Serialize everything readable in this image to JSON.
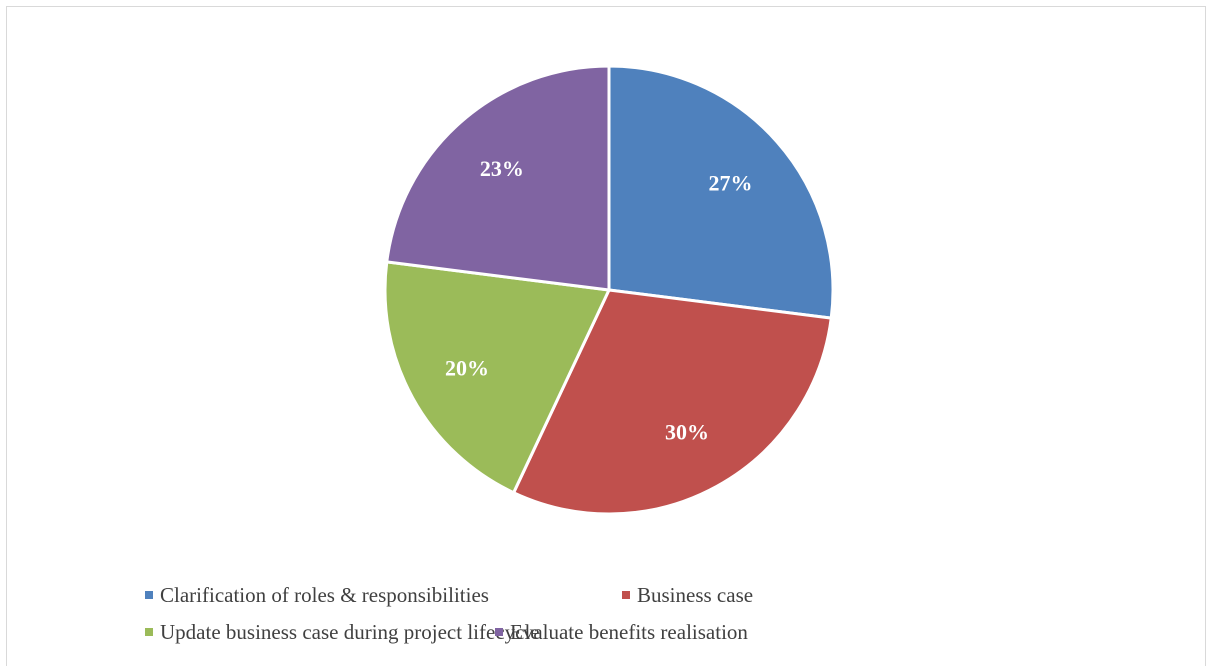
{
  "chart_data": {
    "type": "pie",
    "title": "",
    "categories": [
      "Clarification of roles & responsibilities",
      "Business case",
      "Update business case during project lifecycle",
      "Evaluate benefits realisation"
    ],
    "values": [
      27,
      30,
      20,
      23
    ],
    "labels": [
      "27%",
      "30%",
      "20%",
      "23%"
    ],
    "colors": [
      "#4f81bd",
      "#c0504d",
      "#9bbb59",
      "#8064a2"
    ],
    "start_angle_deg": 0,
    "direction": "clockwise",
    "legend_position": "bottom"
  }
}
